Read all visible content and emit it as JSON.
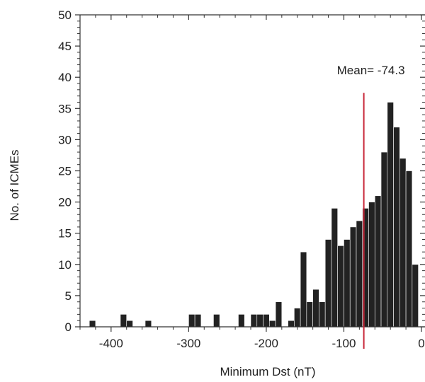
{
  "chart_data": {
    "type": "bar",
    "title": "",
    "xlabel": "Minimum Dst (nT)",
    "ylabel": "No. of ICMEs",
    "xlim": [
      -440,
      0
    ],
    "ylim": [
      0,
      50
    ],
    "x_ticks": [
      -400,
      -300,
      -200,
      -100,
      0
    ],
    "y_ticks": [
      0,
      5,
      10,
      15,
      20,
      25,
      30,
      35,
      40,
      45,
      50
    ],
    "bin_width": 8,
    "grid": false,
    "legend": "none",
    "bars": [
      {
        "x": -428,
        "count": 1
      },
      {
        "x": -388,
        "count": 2
      },
      {
        "x": -380,
        "count": 1
      },
      {
        "x": -356,
        "count": 1
      },
      {
        "x": -300,
        "count": 2
      },
      {
        "x": -292,
        "count": 2
      },
      {
        "x": -268,
        "count": 2
      },
      {
        "x": -236,
        "count": 2
      },
      {
        "x": -220,
        "count": 2
      },
      {
        "x": -212,
        "count": 2
      },
      {
        "x": -204,
        "count": 2
      },
      {
        "x": -196,
        "count": 1
      },
      {
        "x": -188,
        "count": 4
      },
      {
        "x": -172,
        "count": 1
      },
      {
        "x": -164,
        "count": 3
      },
      {
        "x": -156,
        "count": 12
      },
      {
        "x": -148,
        "count": 4
      },
      {
        "x": -140,
        "count": 6
      },
      {
        "x": -132,
        "count": 4
      },
      {
        "x": -124,
        "count": 14
      },
      {
        "x": -116,
        "count": 19
      },
      {
        "x": -108,
        "count": 13
      },
      {
        "x": -100,
        "count": 14
      },
      {
        "x": -92,
        "count": 16
      },
      {
        "x": -84,
        "count": 17
      },
      {
        "x": -76,
        "count": 19
      },
      {
        "x": -68,
        "count": 20
      },
      {
        "x": -60,
        "count": 21
      },
      {
        "x": -52,
        "count": 28
      },
      {
        "x": -44,
        "count": 36
      },
      {
        "x": -36,
        "count": 32
      },
      {
        "x": -28,
        "count": 27
      },
      {
        "x": -20,
        "count": 25
      },
      {
        "x": -12,
        "count": 10
      }
    ],
    "mean_line": {
      "value": -74.3,
      "label": "Mean= -74.3",
      "color": "#c8283a"
    },
    "bar_color": "#222222",
    "axis_color": "#333333"
  }
}
